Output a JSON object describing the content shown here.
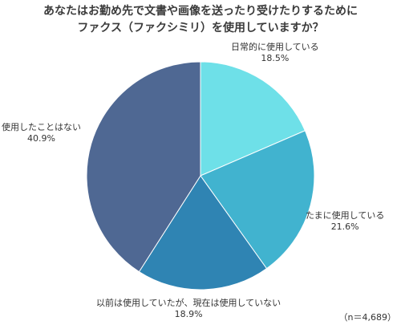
{
  "title_lines": [
    "あなたはお勤め先で文書や画像を送ったり受けたりするために",
    "ファクス（ファクシミリ）を使用していますか？"
  ],
  "sample_size": "（n＝4,689）",
  "chart_data": {
    "type": "pie",
    "slices": [
      {
        "label": "日常的に使用している",
        "value": 18.5,
        "display": "18.5%",
        "color": "#6ee0e8"
      },
      {
        "label": "たまに使用している",
        "value": 21.6,
        "display": "21.6%",
        "color": "#41b3cf"
      },
      {
        "label": "以前は使用していたが、現在は使用していない",
        "value": 18.9,
        "display": "18.9%",
        "color": "#2f84b3"
      },
      {
        "label": "使用したことはない",
        "value": 40.9,
        "display": "40.9%",
        "color": "#4f6893"
      }
    ],
    "start": "top",
    "direction": "clockwise",
    "unit": "%"
  }
}
